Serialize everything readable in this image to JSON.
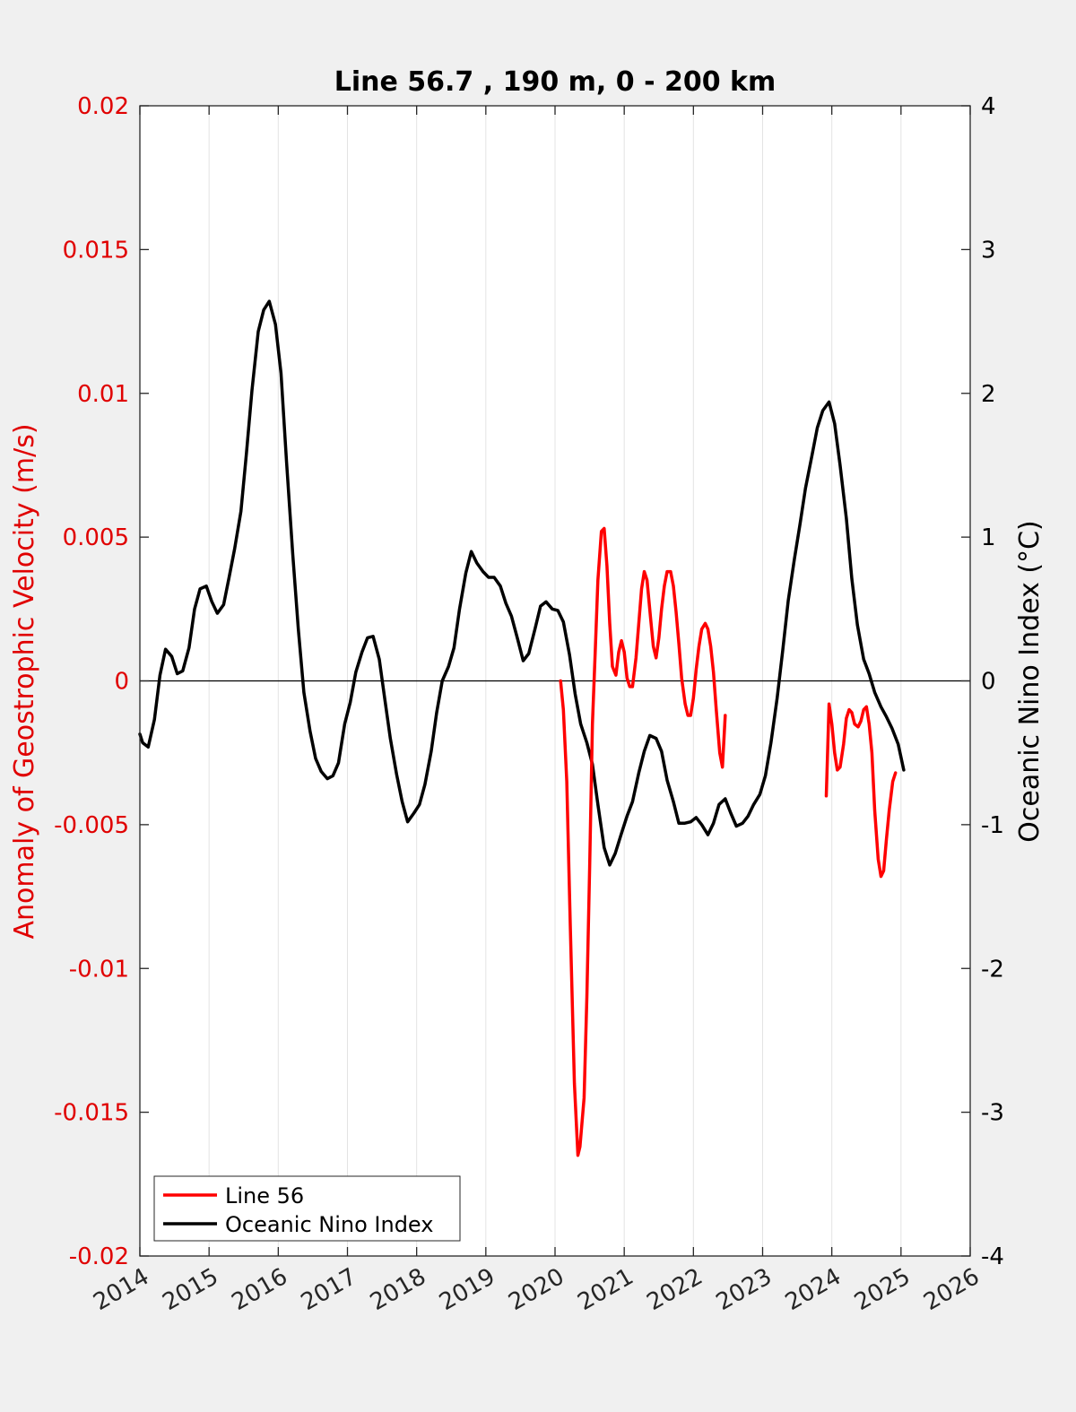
{
  "chart_data": {
    "type": "line",
    "title": "Line 56.7 , 190 m, 0 - 200 km",
    "ylabel_left": "Anomaly of Geostrophic Velocity (m/s)",
    "ylabel_right": "Oceanic Nino Index (°C)",
    "xlabel": "",
    "xlim": [
      2014,
      2026
    ],
    "ylim_left": [
      -0.02,
      0.02
    ],
    "ylim_right": [
      -4,
      4
    ],
    "x_ticks": [
      "2014",
      "2015",
      "2016",
      "2017",
      "2018",
      "2019",
      "2020",
      "2021",
      "2022",
      "2023",
      "2024",
      "2025",
      "2026"
    ],
    "y_left_ticks": [
      "0.02",
      "0.015",
      "0.01",
      "0.005",
      "0",
      "-0.005",
      "-0.01",
      "-0.015",
      "-0.02"
    ],
    "y_right_ticks": [
      "4",
      "3",
      "2",
      "1",
      "0",
      "-1",
      "-2",
      "-3",
      "-4"
    ],
    "grid": "vertical",
    "zero_line": true,
    "legend_position": "bottom-left",
    "colors": {
      "line56": "#ff0000",
      "oni": "#000000",
      "left_axis": "#e00000",
      "right_axis": "#000000"
    },
    "series": [
      {
        "name": "Line 56",
        "axis": "left",
        "color": "#ff0000",
        "segments": [
          {
            "x": [
              2020.08,
              2020.12,
              2020.17,
              2020.22,
              2020.28,
              2020.33,
              2020.36,
              2020.42,
              2020.46,
              2020.5,
              2020.54,
              2020.58,
              2020.62,
              2020.67,
              2020.71,
              2020.75,
              2020.79,
              2020.83,
              2020.88,
              2020.92,
              2020.96,
              2021.0,
              2021.04,
              2021.08,
              2021.12,
              2021.17,
              2021.21,
              2021.25,
              2021.29,
              2021.33,
              2021.38,
              2021.42,
              2021.46,
              2021.5,
              2021.54,
              2021.58,
              2021.62,
              2021.67,
              2021.71,
              2021.75,
              2021.79,
              2021.83,
              2021.88,
              2021.92,
              2021.96,
              2022.0,
              2022.04,
              2022.08,
              2022.12,
              2022.17,
              2022.21,
              2022.25,
              2022.29,
              2022.33,
              2022.38,
              2022.42,
              2022.46,
              2022.5,
              2022.54,
              2022.58,
              2022.62,
              2022.67,
              2022.71,
              2022.75,
              2022.79,
              2022.83,
              2022.88,
              2022.92,
              2022.96,
              2023.0,
              2023.04
            ],
            "y": [
              0.0,
              -0.001,
              -0.0035,
              -0.0085,
              -0.014,
              -0.0165,
              -0.0162,
              -0.0145,
              -0.011,
              -0.0065,
              -0.0015,
              0.001,
              0.0035,
              0.0052,
              0.0053,
              0.004,
              0.002,
              0.0005,
              0.0002,
              0.001,
              0.0014,
              0.001,
              0.0001,
              -0.0002,
              -0.0002,
              0.0008,
              0.002,
              0.0032,
              0.0038,
              0.0035,
              0.0022,
              0.0012,
              0.0008,
              0.0015,
              0.0025,
              0.0033,
              0.0038,
              0.0038,
              0.0033,
              0.0024,
              0.0013,
              0.0001,
              -0.0008,
              -0.0012,
              -0.0012,
              -0.0006,
              0.0004,
              0.0012,
              0.0018,
              0.002,
              0.0018,
              0.0012,
              0.0003,
              -0.001,
              -0.0025,
              -0.003,
              -0.0012,
              null,
              null,
              null,
              null,
              null,
              null,
              null,
              null,
              null,
              null,
              null,
              null,
              null,
              null
            ]
          },
          {
            "x": [
              2023.92,
              2023.96,
              2024.0,
              2024.04,
              2024.08,
              2024.12,
              2024.17,
              2024.21,
              2024.25,
              2024.29,
              2024.33,
              2024.38,
              2024.42,
              2024.46,
              2024.5,
              2024.54,
              2024.58,
              2024.62,
              2024.67,
              2024.71,
              2024.75,
              2024.79,
              2024.83,
              2024.88,
              2024.92,
              2024.96,
              2025.0,
              2025.04,
              2025.08,
              2025.12
            ],
            "y": [
              -0.004,
              -0.0008,
              -0.0015,
              -0.0025,
              -0.0031,
              -0.003,
              -0.0022,
              -0.0013,
              -0.001,
              -0.0011,
              -0.0015,
              -0.0016,
              -0.0014,
              -0.001,
              -0.0009,
              -0.0015,
              -0.0025,
              -0.0045,
              -0.0062,
              -0.0068,
              -0.0066,
              -0.0055,
              -0.0045,
              -0.0035,
              -0.0032,
              null,
              null,
              null,
              null,
              null
            ]
          }
        ]
      },
      {
        "name": "Oceanic Nino Index",
        "axis": "right",
        "color": "#000000",
        "x": [
          2014.0,
          2014.04,
          2014.12,
          2014.21,
          2014.29,
          2014.37,
          2014.46,
          2014.54,
          2014.62,
          2014.71,
          2014.79,
          2014.87,
          2014.96,
          2015.04,
          2015.12,
          2015.21,
          2015.29,
          2015.37,
          2015.46,
          2015.54,
          2015.62,
          2015.71,
          2015.79,
          2015.87,
          2015.96,
          2016.04,
          2016.12,
          2016.21,
          2016.29,
          2016.37,
          2016.46,
          2016.54,
          2016.62,
          2016.71,
          2016.79,
          2016.87,
          2016.96,
          2017.04,
          2017.12,
          2017.21,
          2017.29,
          2017.37,
          2017.46,
          2017.54,
          2017.62,
          2017.71,
          2017.79,
          2017.87,
          2017.96,
          2018.04,
          2018.12,
          2018.21,
          2018.29,
          2018.37,
          2018.46,
          2018.54,
          2018.62,
          2018.71,
          2018.79,
          2018.87,
          2018.96,
          2019.04,
          2019.12,
          2019.21,
          2019.29,
          2019.37,
          2019.46,
          2019.54,
          2019.62,
          2019.71,
          2019.79,
          2019.87,
          2019.96,
          2020.04,
          2020.12,
          2020.21,
          2020.29,
          2020.37,
          2020.46,
          2020.54,
          2020.62,
          2020.71,
          2020.79,
          2020.87,
          2020.96,
          2021.04,
          2021.12,
          2021.21,
          2021.29,
          2021.37,
          2021.46,
          2021.54,
          2021.62,
          2021.71,
          2021.79,
          2021.87,
          2021.96,
          2022.04,
          2022.12,
          2022.21,
          2022.29,
          2022.37,
          2022.46,
          2022.54,
          2022.62,
          2022.71,
          2022.79,
          2022.87,
          2022.96,
          2023.04,
          2023.12,
          2023.21,
          2023.29,
          2023.37,
          2023.46,
          2023.54,
          2023.62,
          2023.71,
          2023.79,
          2023.87,
          2023.96,
          2024.04,
          2024.12,
          2024.21,
          2024.29,
          2024.37,
          2024.46,
          2024.54,
          2024.62,
          2024.71,
          2024.79,
          2024.87,
          2024.96,
          2025.04
        ],
        "y": [
          -0.37,
          -0.43,
          -0.46,
          -0.27,
          0.04,
          0.22,
          0.17,
          0.05,
          0.07,
          0.23,
          0.5,
          0.64,
          0.66,
          0.55,
          0.47,
          0.53,
          0.72,
          0.92,
          1.18,
          1.58,
          2.02,
          2.43,
          2.58,
          2.64,
          2.48,
          2.14,
          1.52,
          0.88,
          0.36,
          -0.08,
          -0.35,
          -0.54,
          -0.63,
          -0.68,
          -0.66,
          -0.57,
          -0.3,
          -0.15,
          0.06,
          0.2,
          0.3,
          0.31,
          0.15,
          -0.13,
          -0.4,
          -0.65,
          -0.84,
          -0.98,
          -0.92,
          -0.86,
          -0.72,
          -0.49,
          -0.22,
          0.0,
          0.1,
          0.23,
          0.5,
          0.75,
          0.9,
          0.82,
          0.76,
          0.72,
          0.72,
          0.66,
          0.54,
          0.45,
          0.29,
          0.14,
          0.19,
          0.36,
          0.52,
          0.55,
          0.5,
          0.49,
          0.41,
          0.18,
          -0.09,
          -0.3,
          -0.43,
          -0.58,
          -0.86,
          -1.16,
          -1.28,
          -1.2,
          -1.06,
          -0.94,
          -0.84,
          -0.64,
          -0.49,
          -0.38,
          -0.4,
          -0.49,
          -0.69,
          -0.84,
          -0.99,
          -0.99,
          -0.98,
          -0.95,
          -1.0,
          -1.07,
          -0.99,
          -0.86,
          -0.82,
          -0.92,
          -1.01,
          -0.99,
          -0.94,
          -0.86,
          -0.79,
          -0.66,
          -0.43,
          -0.12,
          0.21,
          0.56,
          0.85,
          1.09,
          1.34,
          1.56,
          1.76,
          1.88,
          1.94,
          1.79,
          1.5,
          1.13,
          0.71,
          0.39,
          0.15,
          0.05,
          -0.08,
          -0.18,
          -0.25,
          -0.33,
          -0.44,
          -0.62
        ]
      }
    ]
  }
}
